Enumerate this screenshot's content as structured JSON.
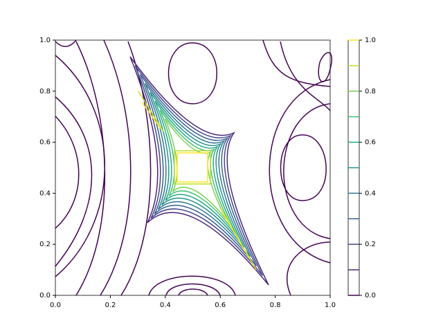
{
  "chart_data": {
    "type": "contour",
    "xlim": [
      0,
      1
    ],
    "ylim": [
      0,
      1
    ],
    "xticks": [
      {
        "value": 0,
        "label": "0.0"
      },
      {
        "value": 0.2,
        "label": "0.2"
      },
      {
        "value": 0.4,
        "label": "0.4"
      },
      {
        "value": 0.6,
        "label": "0.6"
      },
      {
        "value": 0.8,
        "label": "0.8"
      },
      {
        "value": 1,
        "label": "1.0"
      }
    ],
    "yticks": [
      {
        "value": 0,
        "label": "0.0"
      },
      {
        "value": 0.2,
        "label": "0.2"
      },
      {
        "value": 0.4,
        "label": "0.4"
      },
      {
        "value": 0.6,
        "label": "0.6"
      },
      {
        "value": 0.8,
        "label": "0.8"
      },
      {
        "value": 1,
        "label": "1.0"
      }
    ],
    "levels": [
      0,
      0.1,
      0.2,
      0.3,
      0.4,
      0.5,
      0.6,
      0.7,
      0.8,
      0.9,
      1
    ],
    "level_colors": [
      "#440154",
      "#482475",
      "#414487",
      "#355f8d",
      "#2a788e",
      "#21918c",
      "#22a884",
      "#44bf70",
      "#7ad151",
      "#bddf26",
      "#fde725"
    ],
    "colorbar_lim": [
      0,
      1
    ],
    "colorbar_ticks": [
      {
        "value": 0,
        "label": "0.0"
      },
      {
        "value": 0.2,
        "label": "0.2"
      },
      {
        "value": 0.4,
        "label": "0.4"
      },
      {
        "value": 0.6,
        "label": "0.6"
      },
      {
        "value": 0.8,
        "label": "0.8"
      },
      {
        "value": 1,
        "label": "1.0"
      }
    ]
  }
}
